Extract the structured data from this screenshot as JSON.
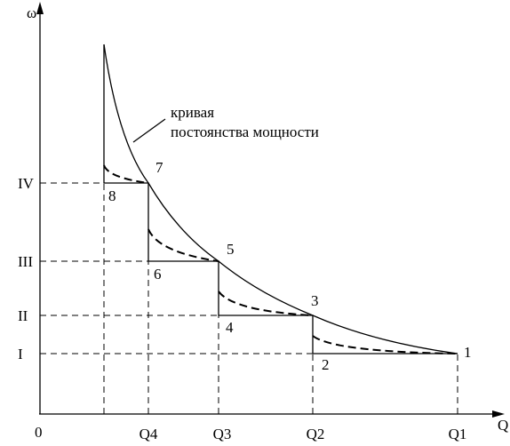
{
  "axes": {
    "y_label": "ω",
    "x_label": "Q",
    "origin": "0"
  },
  "levels": [
    "IV",
    "III",
    "II",
    "I"
  ],
  "q_labels": [
    "Q4",
    "Q3",
    "Q2",
    "Q1"
  ],
  "points": [
    "1",
    "2",
    "3",
    "4",
    "5",
    "6",
    "7",
    "8"
  ],
  "annotation": [
    "кривая",
    "постоянства мощности"
  ]
}
